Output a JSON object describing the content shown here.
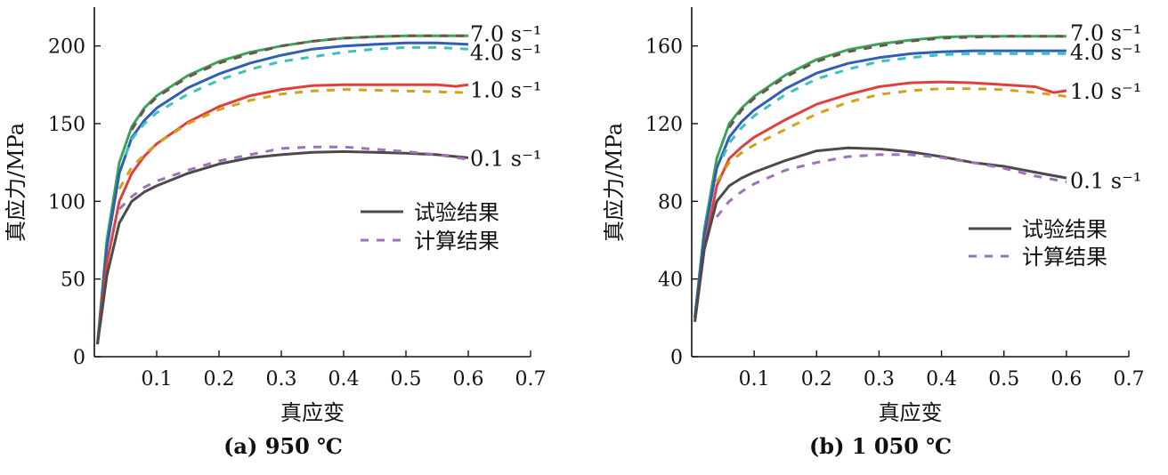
{
  "figure": {
    "legend": {
      "experimental": "试验结果",
      "calculated": "计算结果"
    },
    "colors": {
      "axis": "#111111",
      "experimental_0.1": "#4a4a4a",
      "calculated_0.1": "#9e72b8",
      "experimental_1.0": "#e0403a",
      "calculated_1.0": "#d4a017",
      "experimental_4.0": "#2e5fb3",
      "calculated_4.0": "#3cc0c0",
      "experimental_7.0": "#3aa55a",
      "calculated_7.0": "#6e5548"
    }
  },
  "chart_data": [
    {
      "type": "line",
      "caption": "(a) 950 ℃",
      "xlabel": "真应变",
      "ylabel": "真应力/MPa",
      "xlim": [
        0,
        0.7
      ],
      "ylim": [
        0,
        225
      ],
      "xticks": [
        "0.1",
        "0.2",
        "0.3",
        "0.4",
        "0.5",
        "0.6",
        "0.7"
      ],
      "yticks": [
        "0",
        "50",
        "100",
        "150",
        "200"
      ],
      "rate_labels": [
        {
          "text": "7.0 s⁻¹",
          "y": 208
        },
        {
          "text": "4.0 s⁻¹",
          "y": 196
        },
        {
          "text": "1.0 s⁻¹",
          "y": 172
        },
        {
          "text": "0.1 s⁻¹",
          "y": 128
        }
      ],
      "series": [
        {
          "name": "7.0 s⁻¹ 试验结果",
          "style": "solid",
          "color_key": "experimental_7.0",
          "x": [
            0.005,
            0.02,
            0.04,
            0.06,
            0.08,
            0.1,
            0.15,
            0.2,
            0.25,
            0.3,
            0.35,
            0.4,
            0.45,
            0.5,
            0.55,
            0.6
          ],
          "y": [
            8,
            75,
            125,
            148,
            160,
            168,
            181,
            190,
            196,
            200,
            203,
            205,
            206,
            206.5,
            206.5,
            206.5
          ]
        },
        {
          "name": "7.0 s⁻¹ 计算结果",
          "style": "dashed",
          "color_key": "calculated_7.0",
          "x": [
            0.06,
            0.08,
            0.1,
            0.15,
            0.2,
            0.25,
            0.3,
            0.35,
            0.4,
            0.45,
            0.5,
            0.55,
            0.6
          ],
          "y": [
            146,
            159,
            167,
            180,
            189,
            195,
            200,
            203,
            205,
            206,
            206.5,
            206.5,
            206.5
          ]
        },
        {
          "name": "4.0 s⁻¹ 试验结果",
          "style": "solid",
          "color_key": "experimental_4.0",
          "x": [
            0.005,
            0.02,
            0.04,
            0.06,
            0.08,
            0.1,
            0.15,
            0.2,
            0.25,
            0.3,
            0.35,
            0.4,
            0.45,
            0.5,
            0.55,
            0.6
          ],
          "y": [
            8,
            70,
            118,
            141,
            152,
            160,
            173,
            182,
            189,
            194,
            198,
            200,
            201,
            202,
            202,
            201
          ]
        },
        {
          "name": "4.0 s⁻¹ 计算结果",
          "style": "dashed",
          "color_key": "calculated_4.0",
          "x": [
            0.05,
            0.06,
            0.08,
            0.1,
            0.15,
            0.2,
            0.25,
            0.3,
            0.35,
            0.4,
            0.45,
            0.5,
            0.55,
            0.6
          ],
          "y": [
            130,
            140,
            150,
            157,
            169,
            178,
            185,
            190,
            193,
            196,
            198,
            199,
            199,
            198
          ]
        },
        {
          "name": "1.0 s⁻¹ 试验结果",
          "style": "solid",
          "color_key": "experimental_1.0",
          "x": [
            0.005,
            0.02,
            0.04,
            0.06,
            0.08,
            0.1,
            0.15,
            0.2,
            0.25,
            0.3,
            0.35,
            0.4,
            0.45,
            0.5,
            0.55,
            0.58,
            0.6
          ],
          "y": [
            8,
            60,
            100,
            118,
            129,
            137,
            151,
            161,
            168,
            172,
            174.5,
            175,
            175,
            175,
            175,
            174,
            175
          ]
        },
        {
          "name": "1.0 s⁻¹ 计算结果",
          "style": "dashed",
          "color_key": "calculated_1.0",
          "x": [
            0.04,
            0.06,
            0.08,
            0.1,
            0.15,
            0.2,
            0.25,
            0.3,
            0.35,
            0.4,
            0.45,
            0.5,
            0.55,
            0.6
          ],
          "y": [
            108,
            122,
            130,
            137,
            150,
            159,
            165,
            169,
            171,
            172,
            171.5,
            171,
            170.5,
            170
          ]
        },
        {
          "name": "0.1 s⁻¹ 试验结果",
          "style": "solid",
          "color_key": "experimental_0.1",
          "x": [
            0.005,
            0.02,
            0.04,
            0.06,
            0.08,
            0.1,
            0.15,
            0.2,
            0.25,
            0.3,
            0.35,
            0.4,
            0.45,
            0.5,
            0.55,
            0.6
          ],
          "y": [
            8,
            52,
            86,
            100,
            106,
            110,
            118,
            124,
            128,
            130,
            131.5,
            132,
            131.5,
            131,
            130,
            128
          ]
        },
        {
          "name": "0.1 s⁻¹ 计算结果",
          "style": "dashed",
          "color_key": "calculated_0.1",
          "x": [
            0.04,
            0.06,
            0.08,
            0.1,
            0.15,
            0.2,
            0.25,
            0.3,
            0.35,
            0.4,
            0.45,
            0.5,
            0.55,
            0.6
          ],
          "y": [
            95,
            103,
            109,
            113,
            120,
            126,
            130,
            134,
            135,
            135,
            133.5,
            132,
            130,
            127
          ]
        }
      ]
    },
    {
      "type": "line",
      "caption": "(b) 1 050 ℃",
      "xlabel": "真应变",
      "ylabel": "真应力/MPa",
      "xlim": [
        0,
        0.7
      ],
      "ylim": [
        0,
        180
      ],
      "xticks": [
        "0.1",
        "0.2",
        "0.3",
        "0.4",
        "0.5",
        "0.6",
        "0.7"
      ],
      "yticks": [
        "0",
        "40",
        "80",
        "120",
        "160"
      ],
      "rate_labels": [
        {
          "text": "7.0 s⁻¹",
          "y": 167
        },
        {
          "text": "4.0 s⁻¹",
          "y": 157
        },
        {
          "text": "1.0 s⁻¹",
          "y": 137
        },
        {
          "text": "0.1 s⁻¹",
          "y": 91
        }
      ],
      "series": [
        {
          "name": "7.0 s⁻¹ 试验结果",
          "style": "solid",
          "color_key": "experimental_7.0",
          "x": [
            0.005,
            0.02,
            0.04,
            0.06,
            0.08,
            0.1,
            0.15,
            0.2,
            0.25,
            0.3,
            0.35,
            0.4,
            0.45,
            0.5,
            0.55,
            0.6
          ],
          "y": [
            20,
            65,
            102,
            120,
            128,
            134,
            145,
            153,
            158,
            161,
            163,
            164.5,
            165,
            165,
            165,
            165
          ]
        },
        {
          "name": "7.0 s⁻¹ 计算结果",
          "style": "dashed",
          "color_key": "calculated_7.0",
          "x": [
            0.06,
            0.08,
            0.1,
            0.15,
            0.2,
            0.25,
            0.3,
            0.35,
            0.4,
            0.45,
            0.5,
            0.55,
            0.6
          ],
          "y": [
            118,
            127,
            133,
            144,
            152,
            157,
            160,
            162.5,
            164,
            164.5,
            165,
            165,
            165
          ]
        },
        {
          "name": "4.0 s⁻¹ 试验结果",
          "style": "solid",
          "color_key": "experimental_4.0",
          "x": [
            0.005,
            0.02,
            0.04,
            0.06,
            0.08,
            0.1,
            0.15,
            0.2,
            0.25,
            0.3,
            0.35,
            0.4,
            0.45,
            0.5,
            0.55,
            0.6
          ],
          "y": [
            20,
            62,
            97,
            113,
            121,
            127,
            138,
            146,
            151,
            154,
            156,
            157,
            157.5,
            157.5,
            157.5,
            157.5
          ]
        },
        {
          "name": "4.0 s⁻¹ 计算结果",
          "style": "dashed",
          "color_key": "calculated_4.0",
          "x": [
            0.05,
            0.06,
            0.08,
            0.1,
            0.15,
            0.2,
            0.25,
            0.3,
            0.35,
            0.4,
            0.45,
            0.5,
            0.55,
            0.6
          ],
          "y": [
            103,
            110,
            118,
            124,
            135,
            143,
            148,
            152,
            154,
            155.5,
            156,
            156,
            156,
            156
          ]
        },
        {
          "name": "1.0 s⁻¹ 试验结果",
          "style": "solid",
          "color_key": "experimental_1.0",
          "x": [
            0.005,
            0.02,
            0.04,
            0.06,
            0.08,
            0.1,
            0.15,
            0.2,
            0.25,
            0.3,
            0.35,
            0.4,
            0.45,
            0.5,
            0.55,
            0.58,
            0.6
          ],
          "y": [
            18,
            55,
            88,
            102,
            108,
            113,
            122,
            130,
            135,
            139,
            141,
            141.5,
            141,
            140,
            139,
            136,
            137
          ]
        },
        {
          "name": "1.0 s⁻¹ 计算结果",
          "style": "dashed",
          "color_key": "calculated_1.0",
          "x": [
            0.04,
            0.06,
            0.08,
            0.1,
            0.15,
            0.2,
            0.25,
            0.3,
            0.35,
            0.4,
            0.45,
            0.5,
            0.55,
            0.6
          ],
          "y": [
            90,
            100,
            105,
            109,
            117,
            125,
            131,
            135,
            137,
            138,
            138,
            137.5,
            136,
            134
          ]
        },
        {
          "name": "0.1 s⁻¹ 试验结果",
          "style": "solid",
          "color_key": "experimental_0.1",
          "x": [
            0.005,
            0.02,
            0.04,
            0.06,
            0.08,
            0.1,
            0.15,
            0.2,
            0.25,
            0.3,
            0.35,
            0.4,
            0.45,
            0.5,
            0.55,
            0.6
          ],
          "y": [
            18,
            55,
            80,
            88,
            92,
            95,
            101,
            106,
            107.5,
            107,
            105.5,
            103,
            100,
            98,
            95,
            92
          ]
        },
        {
          "name": "0.1 s⁻¹ 计算结果",
          "style": "dashed",
          "color_key": "calculated_0.1",
          "x": [
            0.04,
            0.06,
            0.08,
            0.1,
            0.15,
            0.2,
            0.25,
            0.3,
            0.35,
            0.4,
            0.45,
            0.5,
            0.55,
            0.6
          ],
          "y": [
            72,
            80,
            85,
            89,
            96,
            100,
            103,
            104,
            104,
            102.5,
            100,
            97,
            93,
            90
          ]
        }
      ]
    }
  ]
}
